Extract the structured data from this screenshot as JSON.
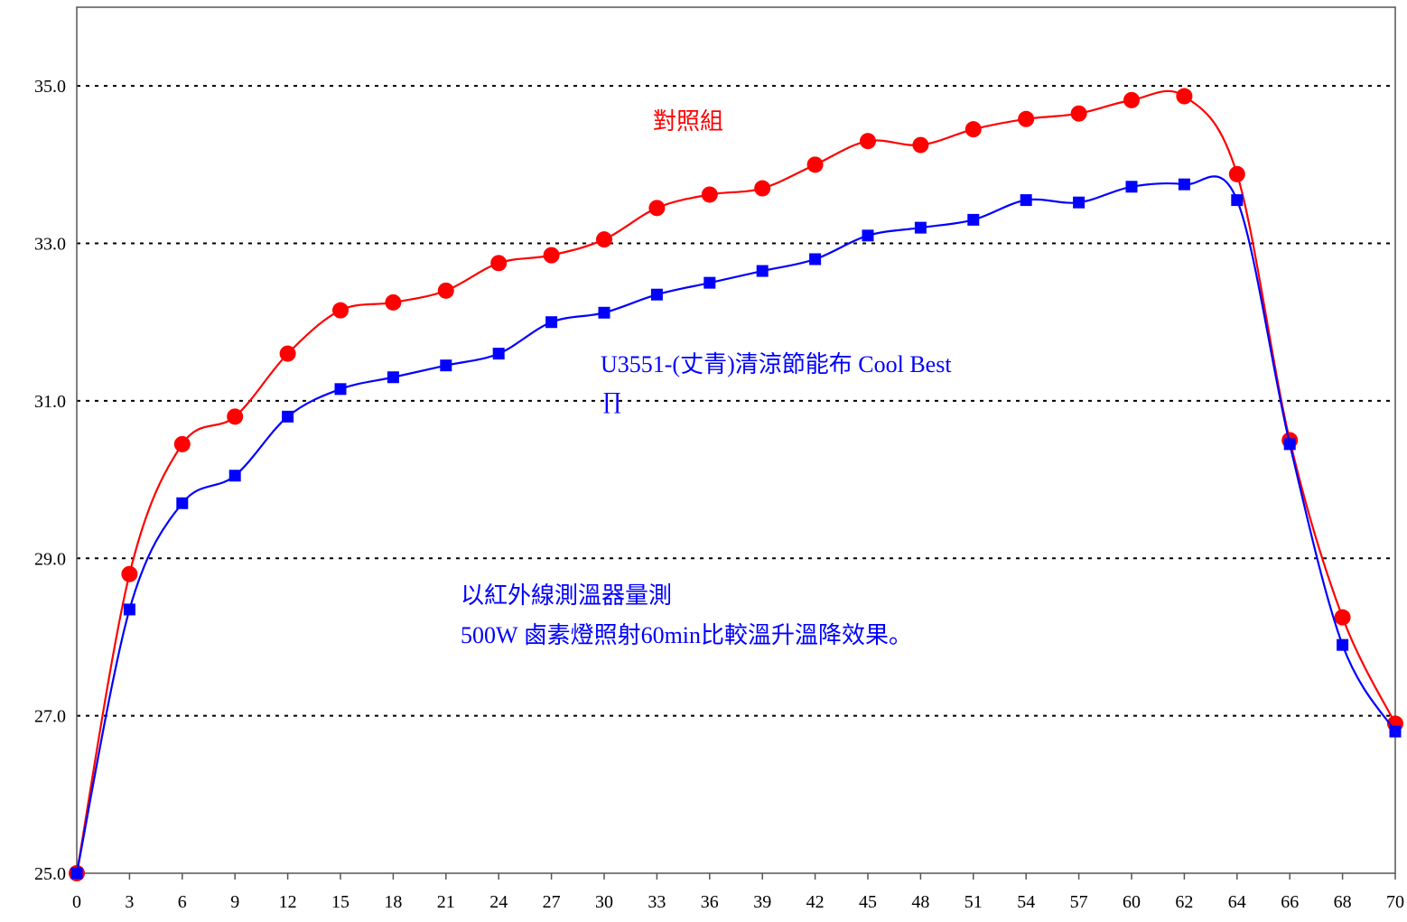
{
  "chart_data": {
    "type": "line",
    "title": "",
    "xlabel": "",
    "ylabel": "",
    "x": [
      0,
      3,
      6,
      9,
      12,
      15,
      18,
      21,
      24,
      27,
      30,
      33,
      36,
      39,
      42,
      45,
      48,
      51,
      54,
      57,
      60,
      62,
      64,
      66,
      68,
      70
    ],
    "x_tick_labels": [
      "0",
      "3",
      "6",
      "9",
      "12",
      "15",
      "18",
      "21",
      "24",
      "27",
      "30",
      "33",
      "36",
      "39",
      "42",
      "45",
      "48",
      "51",
      "54",
      "57",
      "60",
      "62",
      "64",
      "66",
      "68",
      "70"
    ],
    "ylim": [
      25.0,
      36.0
    ],
    "y_ticks": [
      25.0,
      27.0,
      29.0,
      31.0,
      33.0,
      35.0
    ],
    "y_tick_labels": [
      "25.0",
      "27.0",
      "29.0",
      "31.0",
      "33.0",
      "35.0"
    ],
    "grid": "horizontal dotted",
    "series": [
      {
        "name": "",
        "color": "#ff0000",
        "marker": "circle",
        "values": [
          25.0,
          28.8,
          30.45,
          30.8,
          31.6,
          32.15,
          32.25,
          32.4,
          32.75,
          32.85,
          33.05,
          33.45,
          33.62,
          33.7,
          34.0,
          34.3,
          34.25,
          34.45,
          34.58,
          34.65,
          34.82,
          34.87,
          33.88,
          30.5,
          28.25,
          26.9
        ]
      },
      {
        "name": "",
        "color": "#0000ff",
        "marker": "square",
        "values": [
          25.0,
          28.35,
          29.7,
          30.05,
          30.8,
          31.15,
          31.3,
          31.45,
          31.6,
          32.0,
          32.12,
          32.35,
          32.5,
          32.65,
          32.8,
          33.1,
          33.2,
          33.3,
          33.55,
          33.52,
          33.72,
          33.75,
          33.55,
          30.45,
          27.9,
          26.8
        ]
      }
    ],
    "annotations": [
      {
        "text": "對照組",
        "color": "#ff0000"
      },
      {
        "text": "U3551-(丈青)清涼節能布 Cool Best",
        "color": "#0000ff"
      },
      {
        "text": "∏",
        "color": "#0000ff"
      },
      {
        "text": "以紅外線測溫器量測",
        "color": "#0000ff"
      },
      {
        "text": "500W 鹵素燈照射60min比較溫升溫降效果。",
        "color": "#0000ff"
      }
    ]
  }
}
